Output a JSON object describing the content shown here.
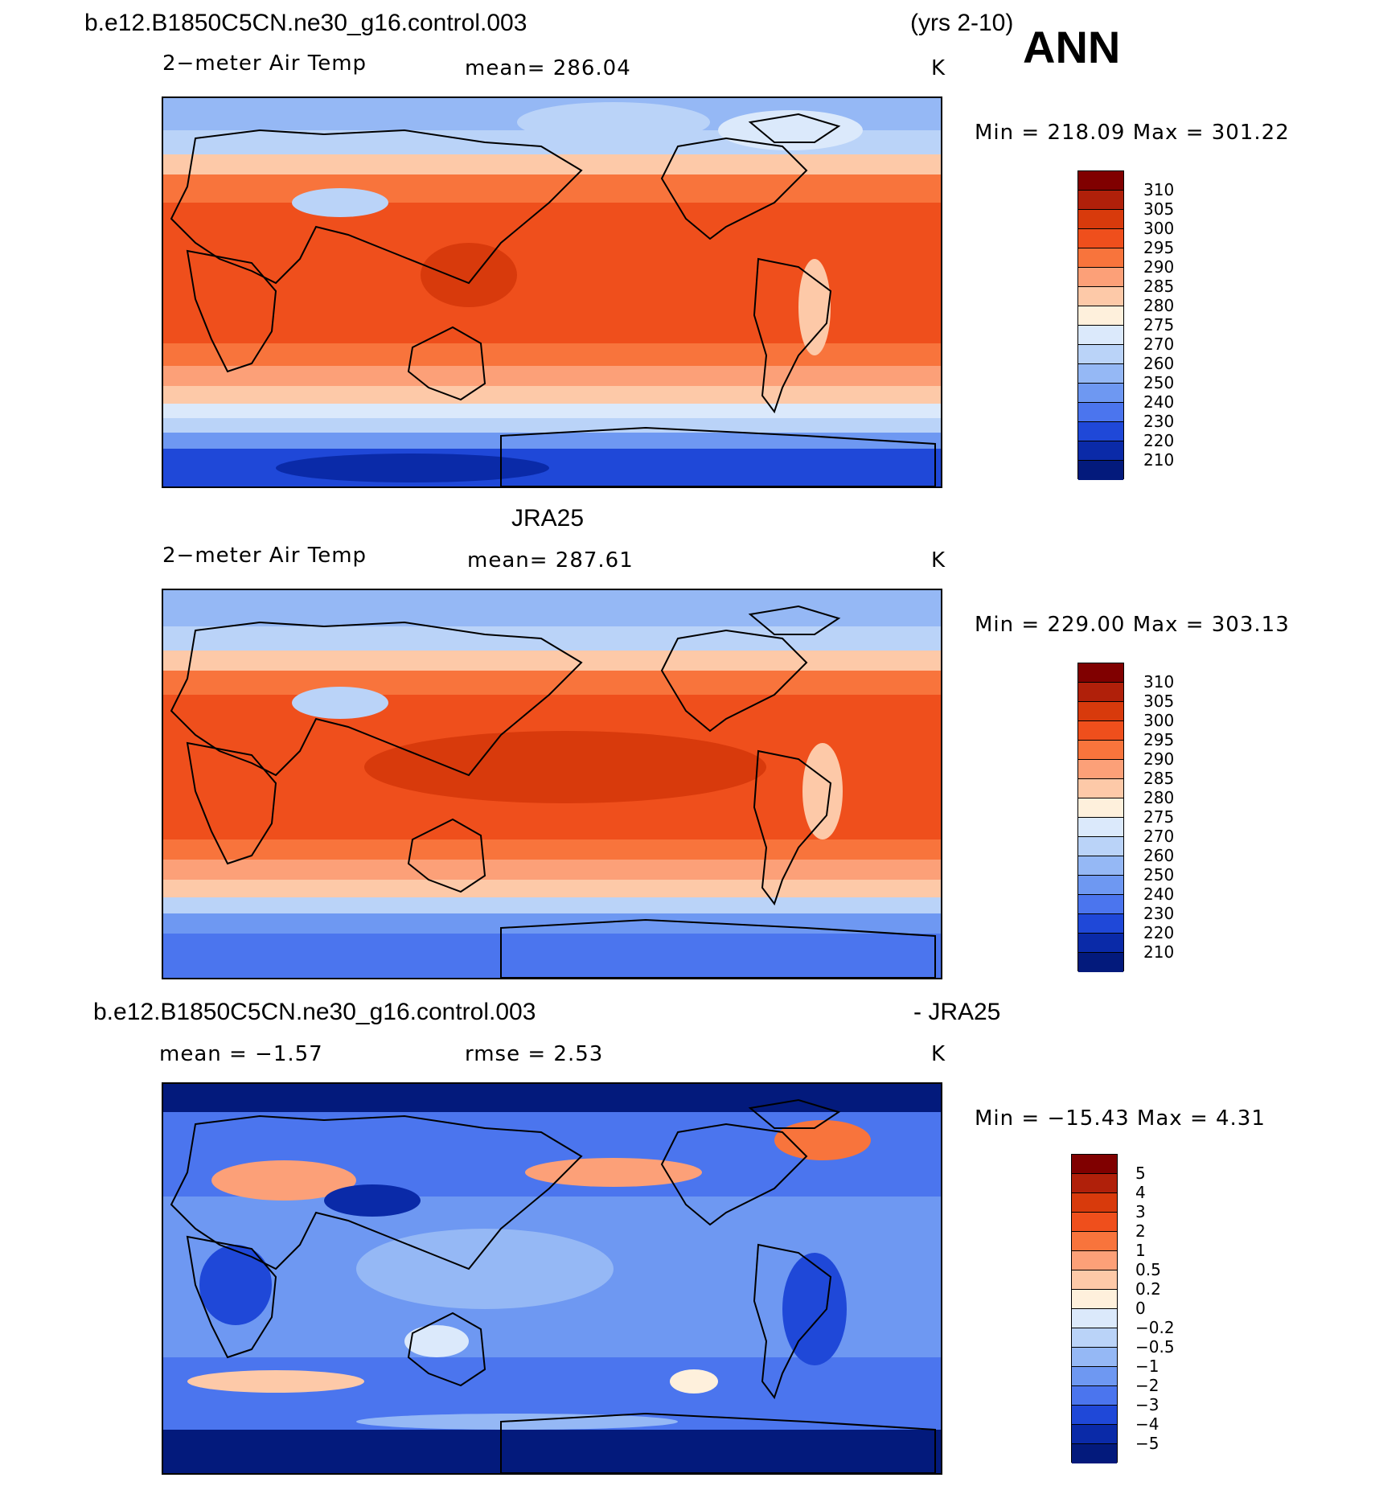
{
  "header": {
    "case_name": "b.e12.B1850C5CN.ne30_g16.control.003",
    "years": "(yrs 2-10)",
    "season": "ANN"
  },
  "panel1": {
    "variable": "2−meter Air Temp",
    "mean": "mean=  286.04",
    "units": "K",
    "minmax": "Min  =  218.09  Max  =  301.22"
  },
  "panel2": {
    "title": "JRA25",
    "variable": "2−meter Air Temp",
    "mean": "mean=  287.61",
    "units": "K",
    "minmax": "Min  =  229.00  Max  =  303.13"
  },
  "panel3": {
    "title_left": "b.e12.B1850C5CN.ne30_g16.control.003",
    "title_right": "- JRA25",
    "mean": "mean  =    −1.57",
    "rmse": "rmse  =     2.53",
    "units": "K",
    "minmax": "Min  =  −15.43  Max  =     4.31"
  },
  "colorbar_abs": {
    "labels": [
      "310",
      "305",
      "300",
      "295",
      "290",
      "285",
      "280",
      "275",
      "270",
      "260",
      "250",
      "240",
      "230",
      "220",
      "210"
    ],
    "colors": [
      "#800000",
      "#b0200a",
      "#d83a0c",
      "#ef4f1c",
      "#f8743c",
      "#fca078",
      "#fdc9a8",
      "#fef0dc",
      "#dbe9fb",
      "#bad3f8",
      "#95b8f5",
      "#6e98f2",
      "#4b75ee",
      "#1f48d8",
      "#0a2aa8",
      "#031a7c"
    ]
  },
  "colorbar_diff": {
    "labels": [
      "5",
      "4",
      "3",
      "2",
      "1",
      "0.5",
      "0.2",
      "0",
      "−0.2",
      "−0.5",
      "−1",
      "−2",
      "−3",
      "−4",
      "−5"
    ],
    "colors": [
      "#800000",
      "#b0200a",
      "#d83a0c",
      "#ef4f1c",
      "#f8743c",
      "#fca078",
      "#fdc9a8",
      "#fef0dc",
      "#dbe9fb",
      "#bad3f8",
      "#95b8f5",
      "#6e98f2",
      "#4b75ee",
      "#1f48d8",
      "#0a2aa8",
      "#031a7c"
    ]
  }
}
